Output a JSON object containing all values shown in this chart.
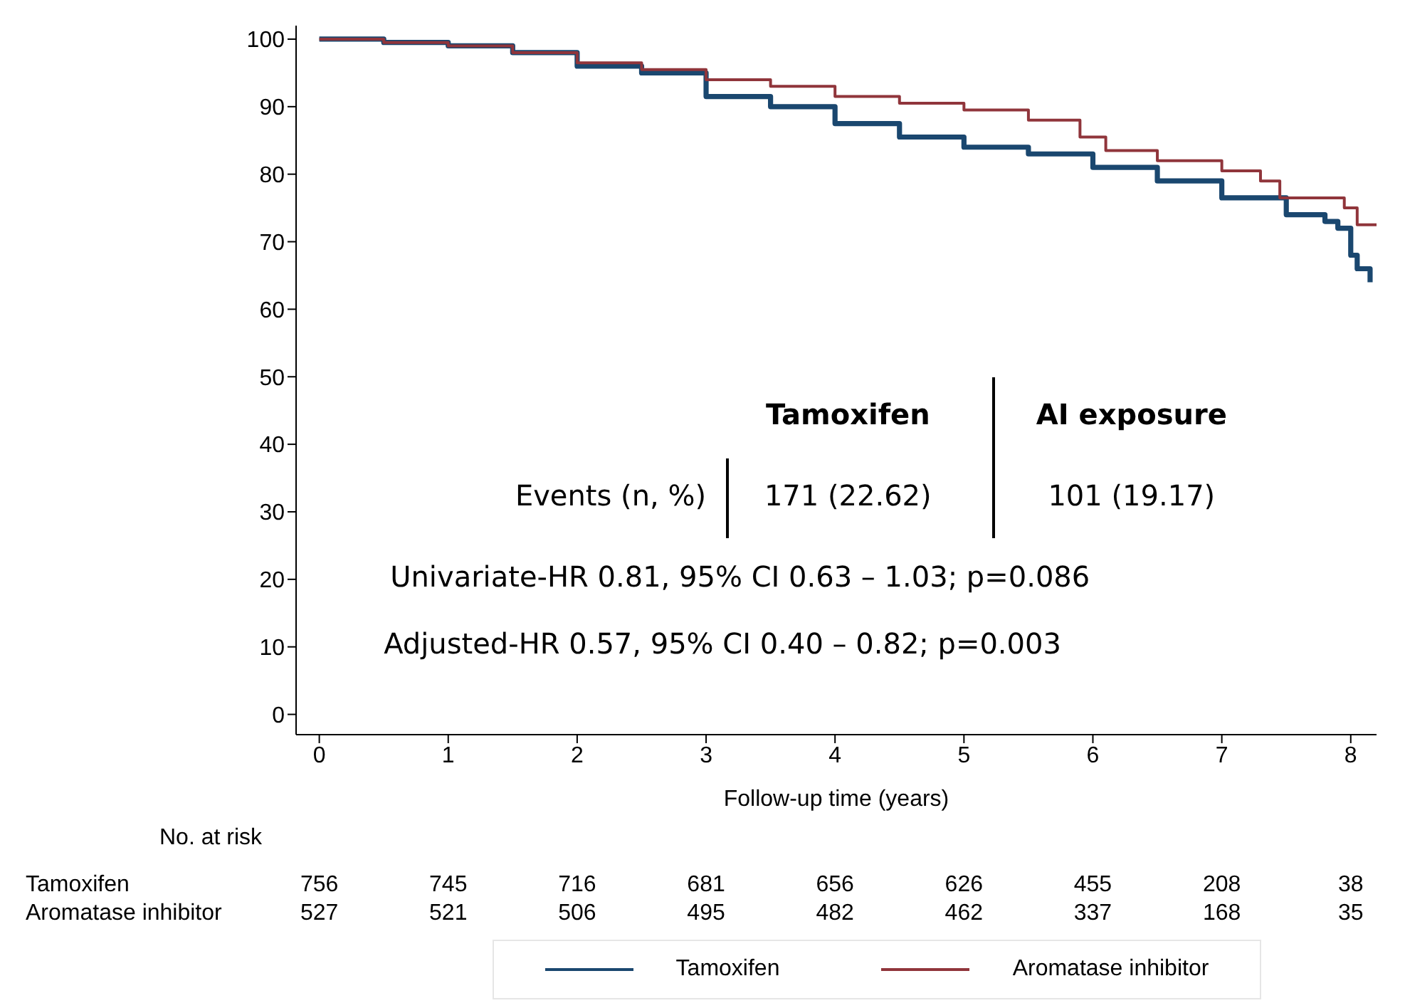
{
  "chart_data": {
    "type": "step",
    "xlabel": "Follow-up time (years)",
    "xlim": [
      -0.18,
      8.2
    ],
    "xticks": [
      0,
      1,
      2,
      3,
      4,
      5,
      6,
      7,
      8
    ],
    "ylim": [
      -3,
      102
    ],
    "yticks": [
      0,
      10,
      20,
      30,
      40,
      50,
      60,
      70,
      80,
      90,
      100
    ],
    "grid": false,
    "legend": "bottom",
    "series": [
      {
        "name": "Tamoxifen",
        "color": "#1a476f",
        "x": [
          0,
          0.5,
          1,
          1.5,
          2,
          2.5,
          3,
          3.5,
          4,
          4.5,
          5,
          5.5,
          6,
          6.5,
          7,
          7.5,
          7.8,
          7.9,
          8.0,
          8.05,
          8.15
        ],
        "values": [
          100,
          99.5,
          99,
          98,
          96,
          95,
          91.5,
          90,
          87.5,
          85.5,
          84,
          83,
          81,
          79,
          76.5,
          74,
          73,
          72,
          68,
          66,
          64
        ]
      },
      {
        "name": "Aromatase inhibitor",
        "color": "#90353b",
        "x": [
          0,
          0.5,
          1,
          1.5,
          2,
          2.5,
          3,
          3.5,
          4,
          4.5,
          5,
          5.5,
          5.9,
          6.1,
          6.5,
          7,
          7.3,
          7.45,
          7.95,
          8.05,
          8.2
        ],
        "values": [
          100,
          99.5,
          99,
          98,
          96.5,
          95.5,
          94,
          93,
          91.5,
          90.5,
          89.5,
          88,
          85.5,
          83.5,
          82,
          80.5,
          79,
          76.5,
          75,
          72.5,
          72.5
        ]
      }
    ],
    "annotations": [
      "Tamoxifen",
      "AI exposure",
      "Events (n, %)",
      "171 (22.62)",
      "101 (19.17)",
      "Univariate-HR 0.81, 95% CI 0.63 – 1.03; p=0.086",
      "Adjusted-HR 0.57, 95% CI 0.40 – 0.82; p=0.003",
      "No. at risk",
      "756",
      "745",
      "716",
      "681",
      "656",
      "626",
      "455",
      "208",
      "38",
      "527",
      "521",
      "506",
      "495",
      "482",
      "462",
      "337",
      "168",
      "35"
    ]
  }
}
